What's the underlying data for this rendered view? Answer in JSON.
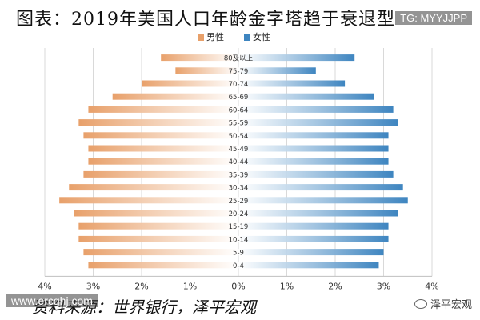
{
  "title": "图表：2019年美国人口年龄金字塔趋于衰退型",
  "watermark_top": "TG: MYYJJPP",
  "watermark_bottom_left": "www.ercghj.com",
  "watermark_bottom_right": "泽平宏观",
  "source": "资料来源：世界银行，泽平宏观",
  "colors": {
    "male": "#e8a06a",
    "female": "#3e85c0"
  },
  "chart_data": {
    "type": "bar",
    "orientation": "horizontal-pyramid",
    "categories": [
      "80及以上",
      "75-79",
      "70-74",
      "65-69",
      "60-64",
      "55-59",
      "50-54",
      "45-49",
      "40-44",
      "35-39",
      "30-34",
      "25-29",
      "20-24",
      "15-19",
      "10-14",
      "5-9",
      "0-4"
    ],
    "series": [
      {
        "name": "男性",
        "values": [
          1.6,
          1.3,
          2.0,
          2.6,
          3.1,
          3.3,
          3.2,
          3.1,
          3.1,
          3.2,
          3.5,
          3.7,
          3.4,
          3.3,
          3.3,
          3.2,
          3.1
        ]
      },
      {
        "name": "女性",
        "values": [
          2.4,
          1.6,
          2.2,
          2.8,
          3.2,
          3.3,
          3.1,
          3.1,
          3.1,
          3.2,
          3.4,
          3.5,
          3.3,
          3.1,
          3.1,
          3.0,
          2.9
        ]
      }
    ],
    "xlim": [
      -4,
      4
    ],
    "xticks": [
      "4%",
      "3%",
      "2%",
      "1%",
      "0%",
      "1%",
      "2%",
      "3%",
      "4%"
    ],
    "legend_position": "top-center",
    "grid": true
  }
}
